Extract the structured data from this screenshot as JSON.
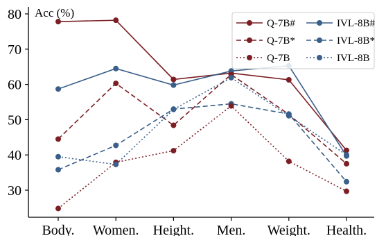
{
  "chart_data": {
    "type": "line",
    "title": "",
    "ylabel": "Acc (%)",
    "xlabel": "",
    "categories": [
      "Body.",
      "Women.",
      "Height.",
      "Men.",
      "Weight.",
      "Health."
    ],
    "ylim": [
      21,
      82
    ],
    "yticks": [
      30,
      40,
      50,
      60,
      70,
      80
    ],
    "grid": false,
    "legend_position": "top-right",
    "series": [
      {
        "name": "Q-7B#",
        "color": "#7b1f24",
        "dash": "solid",
        "values": [
          77.8,
          78.2,
          61.4,
          63.2,
          61.3,
          41.3
        ]
      },
      {
        "name": "IVL-8B#",
        "color": "#3a5f8a",
        "dash": "solid",
        "values": [
          58.7,
          64.5,
          59.8,
          63.8,
          65.3,
          39.7
        ]
      },
      {
        "name": "Q-7B*",
        "color": "#7b1f24",
        "dash": "dashed",
        "values": [
          44.5,
          60.3,
          48.4,
          62.8,
          51.5,
          37.5
        ]
      },
      {
        "name": "IVL-8B*",
        "color": "#3a5f8a",
        "dash": "dashed",
        "values": [
          35.8,
          42.7,
          53.0,
          54.5,
          51.6,
          32.4
        ]
      },
      {
        "name": "Q-7B",
        "color": "#7b1f24",
        "dash": "dotted",
        "values": [
          24.8,
          37.9,
          41.2,
          53.9,
          38.2,
          29.7
        ]
      },
      {
        "name": "IVL-8B",
        "color": "#3a5f8a",
        "dash": "dotted",
        "values": [
          39.5,
          37.3,
          52.9,
          61.9,
          51.1,
          40.0
        ]
      }
    ]
  }
}
